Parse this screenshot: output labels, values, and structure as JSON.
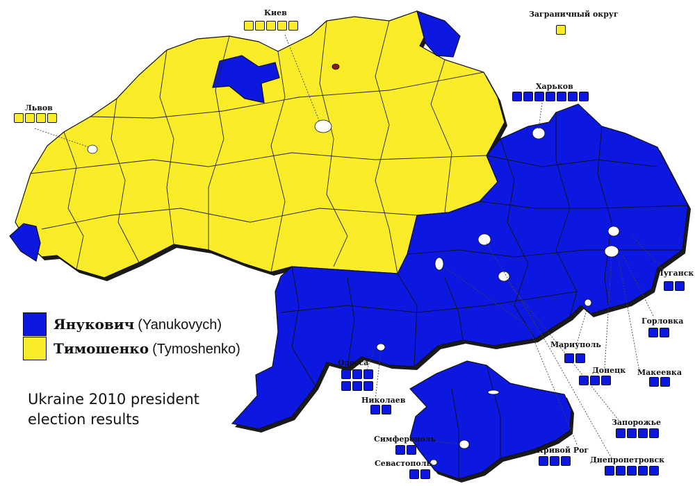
{
  "colors": {
    "yanukovych": "#0c18e0",
    "tymoshenko": "#fbec2a",
    "border": "#111111",
    "city_hole": "#ffffff",
    "kyiv_city": "#8a1c24"
  },
  "legend": [
    {
      "ru": "Янукович",
      "en": "(Yanukovych)",
      "color": "#0c18e0"
    },
    {
      "ru": "Тимошенко",
      "en": "(Tymoshenko)",
      "color": "#fbec2a"
    }
  ],
  "caption": [
    "Ukraine 2010 president",
    "election results"
  ],
  "cities": [
    {
      "id": "kiev",
      "label": "Киев",
      "boxes": 5,
      "color": "#fbec2a"
    },
    {
      "id": "abroad",
      "label": "Заграничный округ",
      "boxes": 1,
      "color": "#fbec2a"
    },
    {
      "id": "lvov",
      "label": "Львов",
      "boxes": 4,
      "color": "#fbec2a"
    },
    {
      "id": "kharkov",
      "label": "Харьков",
      "boxes": 7,
      "color": "#0c18e0"
    },
    {
      "id": "lugansk",
      "label": "Луганск",
      "boxes": 2,
      "color": "#0c18e0"
    },
    {
      "id": "gorlovka",
      "label": "Горловка",
      "boxes": 2,
      "color": "#0c18e0"
    },
    {
      "id": "mariupol",
      "label": "Мариуполь",
      "boxes": 2,
      "color": "#0c18e0"
    },
    {
      "id": "donetsk",
      "label": "Донецк",
      "boxes": 3,
      "color": "#0c18e0"
    },
    {
      "id": "makeevka",
      "label": "Макеевка",
      "boxes": 2,
      "color": "#0c18e0"
    },
    {
      "id": "odessa",
      "label": "Одесса",
      "boxes": 6,
      "color": "#0c18e0"
    },
    {
      "id": "nikolaev",
      "label": "Николаев",
      "boxes": 2,
      "color": "#0c18e0"
    },
    {
      "id": "zaporozhe",
      "label": "Запорожье",
      "boxes": 4,
      "color": "#0c18e0"
    },
    {
      "id": "simferopol",
      "label": "Симферополь",
      "boxes": 2,
      "color": "#0c18e0"
    },
    {
      "id": "krivoy_rog",
      "label": "Кривой Рог",
      "boxes": 3,
      "color": "#0c18e0"
    },
    {
      "id": "sevastopol",
      "label": "Севастополь",
      "boxes": 2,
      "color": "#0c18e0"
    },
    {
      "id": "dnepropetrovsk",
      "label": "Днепропетровск",
      "boxes": 5,
      "color": "#0c18e0"
    }
  ]
}
